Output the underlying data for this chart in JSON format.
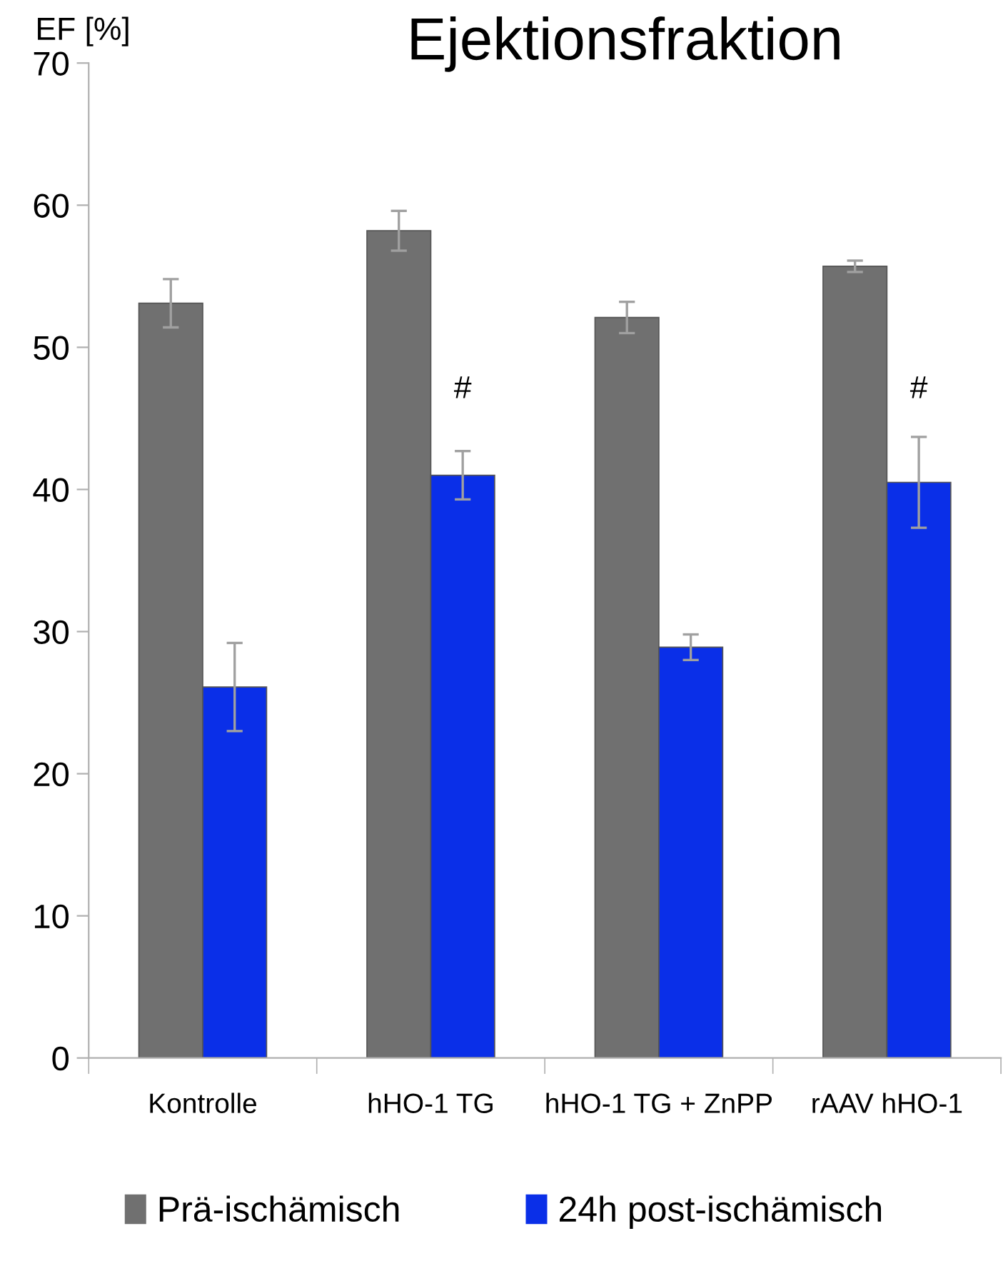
{
  "chart_data": {
    "type": "bar",
    "title": "Ejektionsfraktion",
    "ylabel": "EF [%]",
    "categories": [
      "Kontrolle",
      "hHO-1 TG",
      "hHO-1 TG + ZnPP",
      "rAAV hHO-1"
    ],
    "series": [
      {
        "name": "Prä-ischämisch",
        "color": "#707070",
        "values": [
          53.1,
          58.2,
          52.1,
          55.7
        ],
        "errors": [
          1.7,
          1.4,
          1.1,
          0.4
        ]
      },
      {
        "name": "24h post-ischämisch",
        "color": "#0a2fe8",
        "values": [
          26.1,
          41.0,
          28.9,
          40.5
        ],
        "errors": [
          3.1,
          1.7,
          0.9,
          3.2
        ]
      }
    ],
    "annotations": [
      {
        "text": "#",
        "x": "hHO-1 TG",
        "y": 47
      },
      {
        "text": "#",
        "x": "rAAV hHO-1",
        "y": 47
      }
    ],
    "ylim": [
      0,
      70
    ],
    "yticks": [
      0,
      10,
      20,
      30,
      40,
      50,
      60,
      70
    ],
    "grid": false,
    "legend": "bottom"
  }
}
